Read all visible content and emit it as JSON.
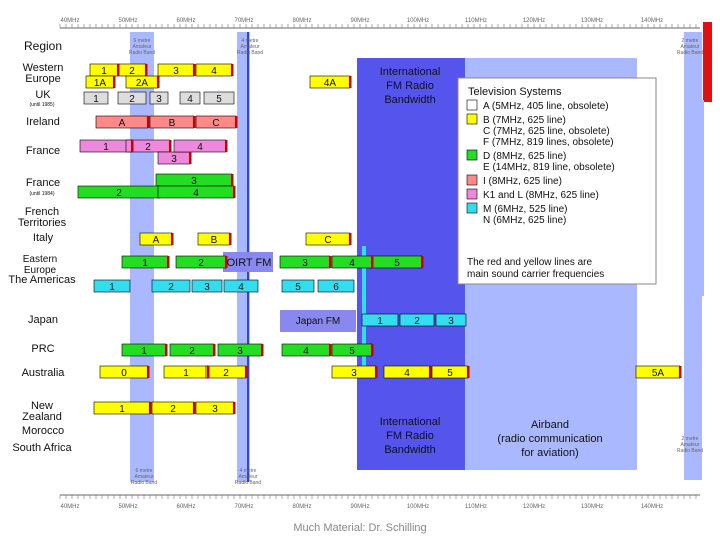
{
  "freq_axis": [
    "40MHz",
    "50MHz",
    "60MHz",
    "70MHz",
    "80MHz",
    "90MHz",
    "100MHz",
    "110MHz",
    "120MHz",
    "130MHz",
    "140MHz"
  ],
  "regions": [
    {
      "id": "western-europe",
      "label": "Western Europe"
    },
    {
      "id": "uk",
      "label": "UK"
    },
    {
      "id": "uk-note",
      "label": "(until 1985)"
    },
    {
      "id": "ireland",
      "label": "Ireland"
    },
    {
      "id": "france",
      "label": "France"
    },
    {
      "id": "france-note",
      "label": "France"
    },
    {
      "id": "france-note-sub",
      "label": "(until 1984)"
    },
    {
      "id": "french-territories",
      "label": "French Territories"
    },
    {
      "id": "italy",
      "label": "Italy"
    },
    {
      "id": "eastern-europe",
      "label": "Eastern Europe"
    },
    {
      "id": "americas",
      "label": "The Americas"
    },
    {
      "id": "japan",
      "label": "Japan"
    },
    {
      "id": "prc",
      "label": "PRC"
    },
    {
      "id": "australia",
      "label": "Australia"
    },
    {
      "id": "new-zealand",
      "label": "New Zealand"
    },
    {
      "id": "morocco",
      "label": "Morocco"
    },
    {
      "id": "south-africa",
      "label": "South Africa"
    }
  ],
  "region_title": "Region",
  "fm_band_top": {
    "line1": "International",
    "line2": "FM Radio",
    "line3": "Bandwidth"
  },
  "fm_band_bottom": {
    "line1": "International",
    "line2": "FM Radio",
    "line3": "Bandwidth"
  },
  "oirt_fm": "OIRT FM",
  "japan_fm": "Japan FM",
  "airband": {
    "line1": "Airband",
    "line2": "(radio communication",
    "line3": "for aviation)"
  },
  "amateur_top_left": [
    "6 metre",
    "Amateur",
    "Radio Band"
  ],
  "amateur_top_mid": [
    "4 metre",
    "Amateur",
    "Radio Band"
  ],
  "amateur_top_right": [
    "2 metre",
    "Amateur",
    "Radio Band"
  ],
  "amateur_bottom_left": [
    "6 metre",
    "Amateur",
    "Radio Band"
  ],
  "amateur_bottom_mid": [
    "4 metre",
    "Amateur",
    "Radio Band"
  ],
  "amateur_bottom_right": [
    "2 metre",
    "Amateur",
    "Radio Band"
  ],
  "legend": {
    "title": "Television Systems",
    "entries": [
      {
        "color": "#ffffff",
        "lines": [
          "A (5MHz, 405 line, obsolete)"
        ]
      },
      {
        "color": "#ffff00",
        "lines": [
          "B (7MHz, 625 line)",
          "C (7MHz, 625 line, obsolete)",
          "F (7MHz, 819 lines, obsolete)"
        ]
      },
      {
        "color": "#22dd22",
        "lines": [
          "D (8MHz, 625 line)",
          "E (14MHz, 819 line, obsolete)"
        ]
      },
      {
        "color": "#ff8888",
        "lines": [
          "I (8MHz, 625 line)"
        ]
      },
      {
        "color": "#ee88dd",
        "lines": [
          "K1 and L (8MHz, 625 line)"
        ]
      },
      {
        "color": "#33ddee",
        "lines": [
          "M (6MHz, 525 line)",
          "N (6MHz, 625 line)"
        ]
      }
    ],
    "note": [
      "The red and yellow lines are",
      "main sound carrier frequencies"
    ]
  },
  "colors": {
    "yellow": "#ffff00",
    "grey": "#dddddd",
    "red": "#ff8888",
    "pink": "#ee88dd",
    "green": "#22dd22",
    "cyan": "#33ddee",
    "fm_band": "#5555ee",
    "light_band": "#aab8ff",
    "japan_fm": "#8888ee"
  },
  "footer": "Much Material: Dr. Schilling"
}
